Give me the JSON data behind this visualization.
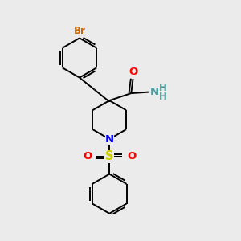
{
  "bg_color": "#ebebeb",
  "bond_color": "#000000",
  "atom_colors": {
    "Br": "#cc6600",
    "O": "#ff0000",
    "N_pip": "#0000ff",
    "N_amide": "#4a9999",
    "S": "#cccc00",
    "H": "#4a9999"
  },
  "lw": 1.4,
  "fs": 8.5,
  "xlim": [
    0,
    10
  ],
  "ylim": [
    0,
    10
  ]
}
